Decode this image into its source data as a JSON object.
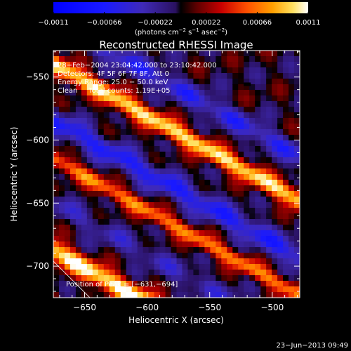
{
  "chart_data": {
    "type": "heatmap",
    "title": "Reconstructed RHESSI Image",
    "xlabel": "Heliocentric X (arcsec)",
    "ylabel": "Heliocentric Y (arcsec)",
    "xlim": [
      -675,
      -478
    ],
    "ylim": [
      -725,
      -529
    ],
    "x_ticks": [
      {
        "value": -650,
        "label": "−650"
      },
      {
        "value": -600,
        "label": "−600"
      },
      {
        "value": -550,
        "label": "−550"
      },
      {
        "value": -500,
        "label": "−500"
      }
    ],
    "y_ticks": [
      {
        "value": -550,
        "label": "−550"
      },
      {
        "value": -600,
        "label": "−600"
      },
      {
        "value": -650,
        "label": "−650"
      },
      {
        "value": -700,
        "label": "−700"
      }
    ],
    "colorbar": {
      "min": -0.0011,
      "max": 0.0011,
      "ticks": [
        {
          "value": -0.0011,
          "label": "−0.0011"
        },
        {
          "value": -0.00066,
          "label": "−0.00066"
        },
        {
          "value": -0.00022,
          "label": "−0.00022"
        },
        {
          "value": 0.00022,
          "label": "0.00022"
        },
        {
          "value": 0.00066,
          "label": "0.00066"
        },
        {
          "value": 0.0011,
          "label": "0.0011"
        }
      ],
      "label_parts": [
        "(photons cm",
        "−2",
        " s",
        "−1",
        " asec",
        "−2",
        ")"
      ]
    },
    "annotations": [
      "28−Feb−2004 23:04:42.000 to 23:10:42.000",
      "Detectors: 4F 5F 6F 7F 8F, Att 0",
      "Energy Range: 25.0 − 50.0 keV",
      "Clean     Total counts: 1.19E+05"
    ],
    "peak_label": "Position of Peak = [−631,−694]",
    "peak_position": [
      -631,
      -694
    ],
    "bands": [
      {
        "b": -570,
        "amp": 0.001,
        "w": 8
      },
      {
        "b": -615,
        "amp": -0.0006,
        "w": 10
      },
      {
        "b": -645,
        "amp": 0.0007,
        "w": 7
      },
      {
        "b": -680,
        "amp": -0.0003,
        "w": 9
      },
      {
        "b": -718,
        "amp": 0.0011,
        "w": 9
      },
      {
        "b": -760,
        "amp": 0.0005,
        "w": 9
      },
      {
        "b": -535,
        "amp": -0.0005,
        "w": 9
      }
    ]
  },
  "footer": {
    "timestamp": "23−Jun−2013 09:49"
  }
}
